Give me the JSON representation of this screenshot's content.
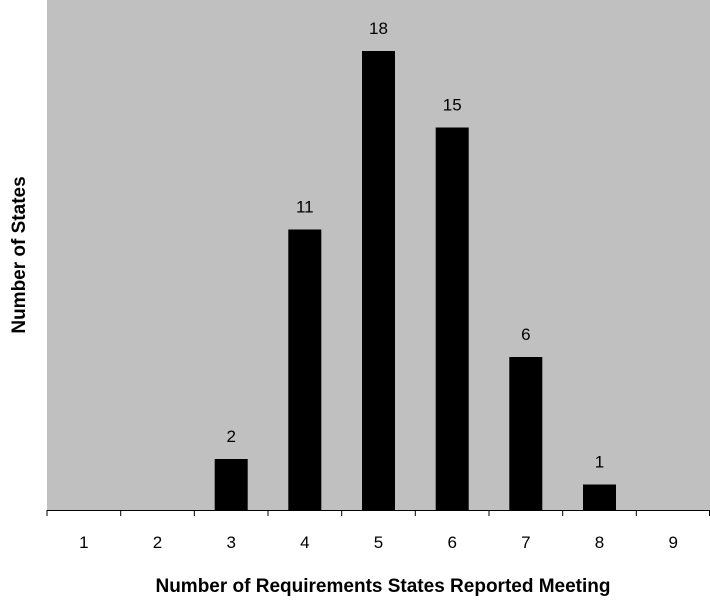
{
  "chart_data": {
    "type": "bar",
    "categories": [
      "1",
      "2",
      "3",
      "4",
      "5",
      "6",
      "7",
      "8",
      "9"
    ],
    "values": [
      0,
      0,
      2,
      11,
      18,
      15,
      6,
      1,
      0
    ],
    "data_labels": [
      "",
      "",
      "2",
      "11",
      "18",
      "15",
      "6",
      "1",
      ""
    ],
    "xlabel": "Number of Requirements States Reported Meeting",
    "ylabel": "Number of States",
    "ylim": [
      0,
      20
    ],
    "grid": false,
    "legend": "none",
    "colors": {
      "plot_background": "#c0c0c0",
      "bar": "#000000"
    }
  }
}
